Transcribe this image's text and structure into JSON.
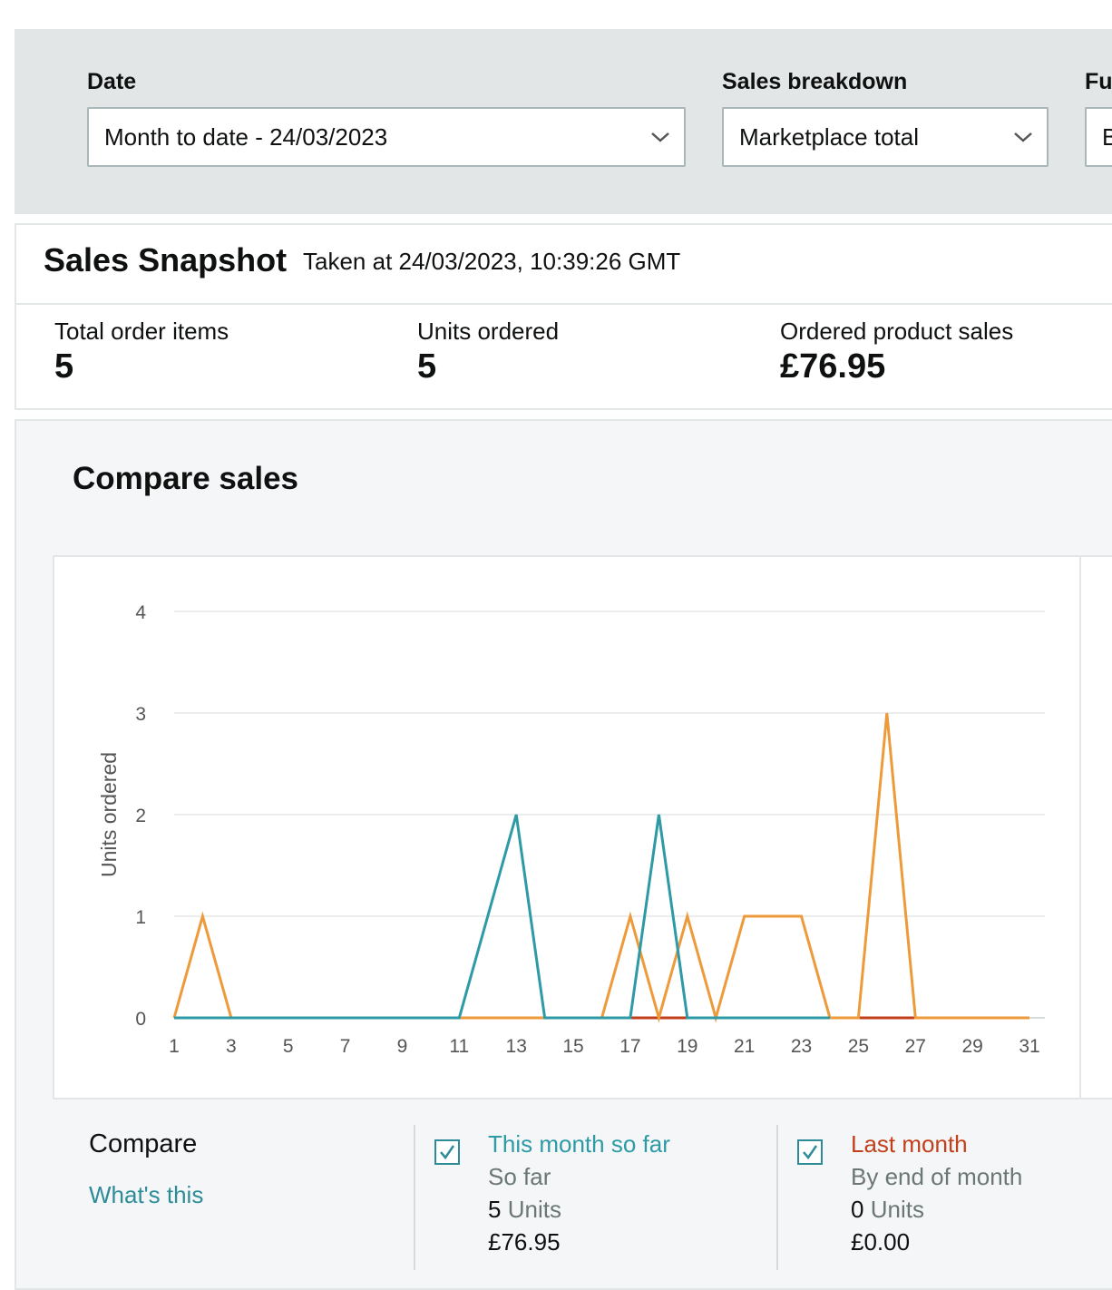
{
  "filters": {
    "date_label": "Date",
    "date_value": "Month to date - 24/03/2023",
    "breakdown_label": "Sales breakdown",
    "breakdown_value": "Marketplace total",
    "fulfillment_label_partial": "Fu",
    "fulfillment_value_partial": "B"
  },
  "snapshot": {
    "title": "Sales Snapshot",
    "taken_at": "Taken at 24/03/2023, 10:39:26 GMT",
    "metrics": [
      {
        "label": "Total order items",
        "value": "5"
      },
      {
        "label": "Units ordered",
        "value": "5"
      },
      {
        "label": "Ordered product sales",
        "value": "£76.95"
      }
    ]
  },
  "compare": {
    "title": "Compare sales",
    "legend_label": "Compare",
    "whats_this": "What's this",
    "this_month": {
      "name": "This month so far",
      "sub": "So far",
      "units_num": "5",
      "units_word": "Units",
      "sales": "£76.95",
      "color": "#2e9aa6"
    },
    "last_month": {
      "name": "Last month",
      "sub": "By end of month",
      "units_num": "0",
      "units_word": "Units",
      "sales": "£0.00",
      "color": "#c23f1b"
    }
  },
  "chart_data": {
    "type": "line",
    "ylabel": "Units ordered",
    "xlabel": "",
    "ylim": [
      0,
      4
    ],
    "yticks": [
      0,
      1,
      2,
      3,
      4
    ],
    "xlim": [
      1,
      31
    ],
    "xticks": [
      1,
      3,
      5,
      7,
      9,
      11,
      13,
      15,
      17,
      19,
      21,
      23,
      25,
      27,
      29,
      31
    ],
    "grid": true,
    "series": [
      {
        "name": "Last month",
        "color": "#c23f1b",
        "x": [
          1,
          28
        ],
        "y": [
          0,
          0
        ]
      },
      {
        "color": "#ed9a3a",
        "x": [
          1,
          2,
          3,
          16,
          17,
          18,
          19,
          20,
          21,
          22,
          23,
          24,
          25,
          26,
          27,
          28,
          31
        ],
        "y": [
          0,
          1,
          0,
          0,
          1,
          0,
          1,
          0,
          1,
          1,
          1,
          0,
          0,
          3,
          0,
          0,
          0
        ]
      },
      {
        "name": "This month so far",
        "color": "#2e9aa6",
        "x": [
          1,
          11,
          13,
          14,
          17,
          18,
          19,
          24
        ],
        "y": [
          0,
          0,
          2,
          0,
          0,
          2,
          0,
          0
        ]
      }
    ]
  }
}
